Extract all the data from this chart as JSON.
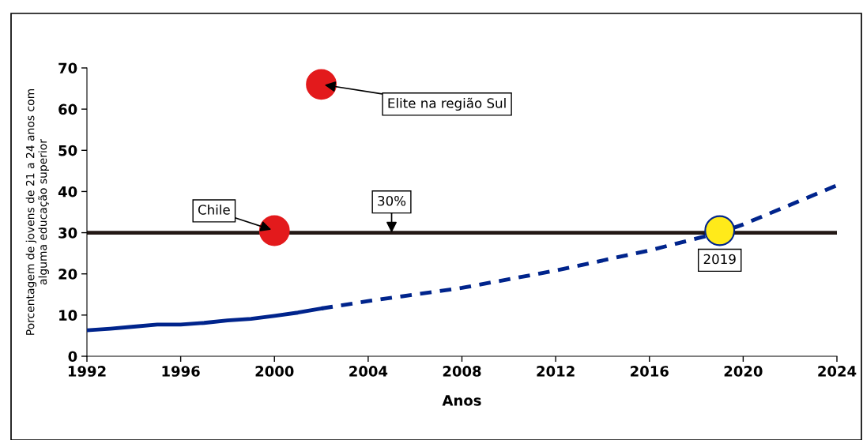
{
  "chart_data": {
    "type": "line",
    "xlabel": "Anos",
    "ylabel": "Porcentagem de jovens de 21 a 24 anos com\nalguma educação superior",
    "xlim": [
      1992,
      2024
    ],
    "xticks": [
      1992,
      1996,
      2000,
      2004,
      2008,
      2012,
      2016,
      2020,
      2024
    ],
    "ylim": [
      0,
      70
    ],
    "yticks": [
      0,
      10,
      20,
      30,
      40,
      50,
      60,
      70
    ],
    "grid": false,
    "series": [
      {
        "line_style": "solid",
        "color": "#00248c",
        "x": [
          1992,
          1993,
          1994,
          1995,
          1996,
          1997,
          1998,
          1999,
          2000,
          2001,
          2002
        ],
        "values": [
          6.3,
          6.7,
          7.2,
          7.7,
          7.7,
          8.1,
          8.7,
          9.1,
          9.8,
          10.6,
          11.6
        ]
      },
      {
        "type": "line",
        "line_style": "dashed",
        "color": "#00248c",
        "x": [
          2002,
          2004,
          2008,
          2012,
          2016,
          2019,
          2020,
          2024
        ],
        "values": [
          11.6,
          13.4,
          16.6,
          20.8,
          25.7,
          30.0,
          32.0,
          41.5
        ]
      },
      {
        "type": "scatter",
        "marker": "circle",
        "color": "#e31a1c",
        "x": [
          2002,
          2000
        ],
        "values": [
          66,
          30.5
        ]
      },
      {
        "type": "scatter",
        "marker": "circle",
        "color": "#ffea1a",
        "x": [
          2019
        ],
        "values": [
          30.5
        ]
      }
    ],
    "ref_lines": [
      {
        "axis": "y",
        "value": 30,
        "color": "#231815",
        "line_style": "solid"
      }
    ],
    "annotations": [
      {
        "text": "Elite na região Sul",
        "x": 2002,
        "y": 66
      },
      {
        "text": "Chile",
        "x": 2000,
        "y": 30.5
      },
      {
        "text": "30%",
        "x": 2005,
        "y": 30
      },
      {
        "text": "2019",
        "x": 2019,
        "y": 30.5
      }
    ]
  }
}
